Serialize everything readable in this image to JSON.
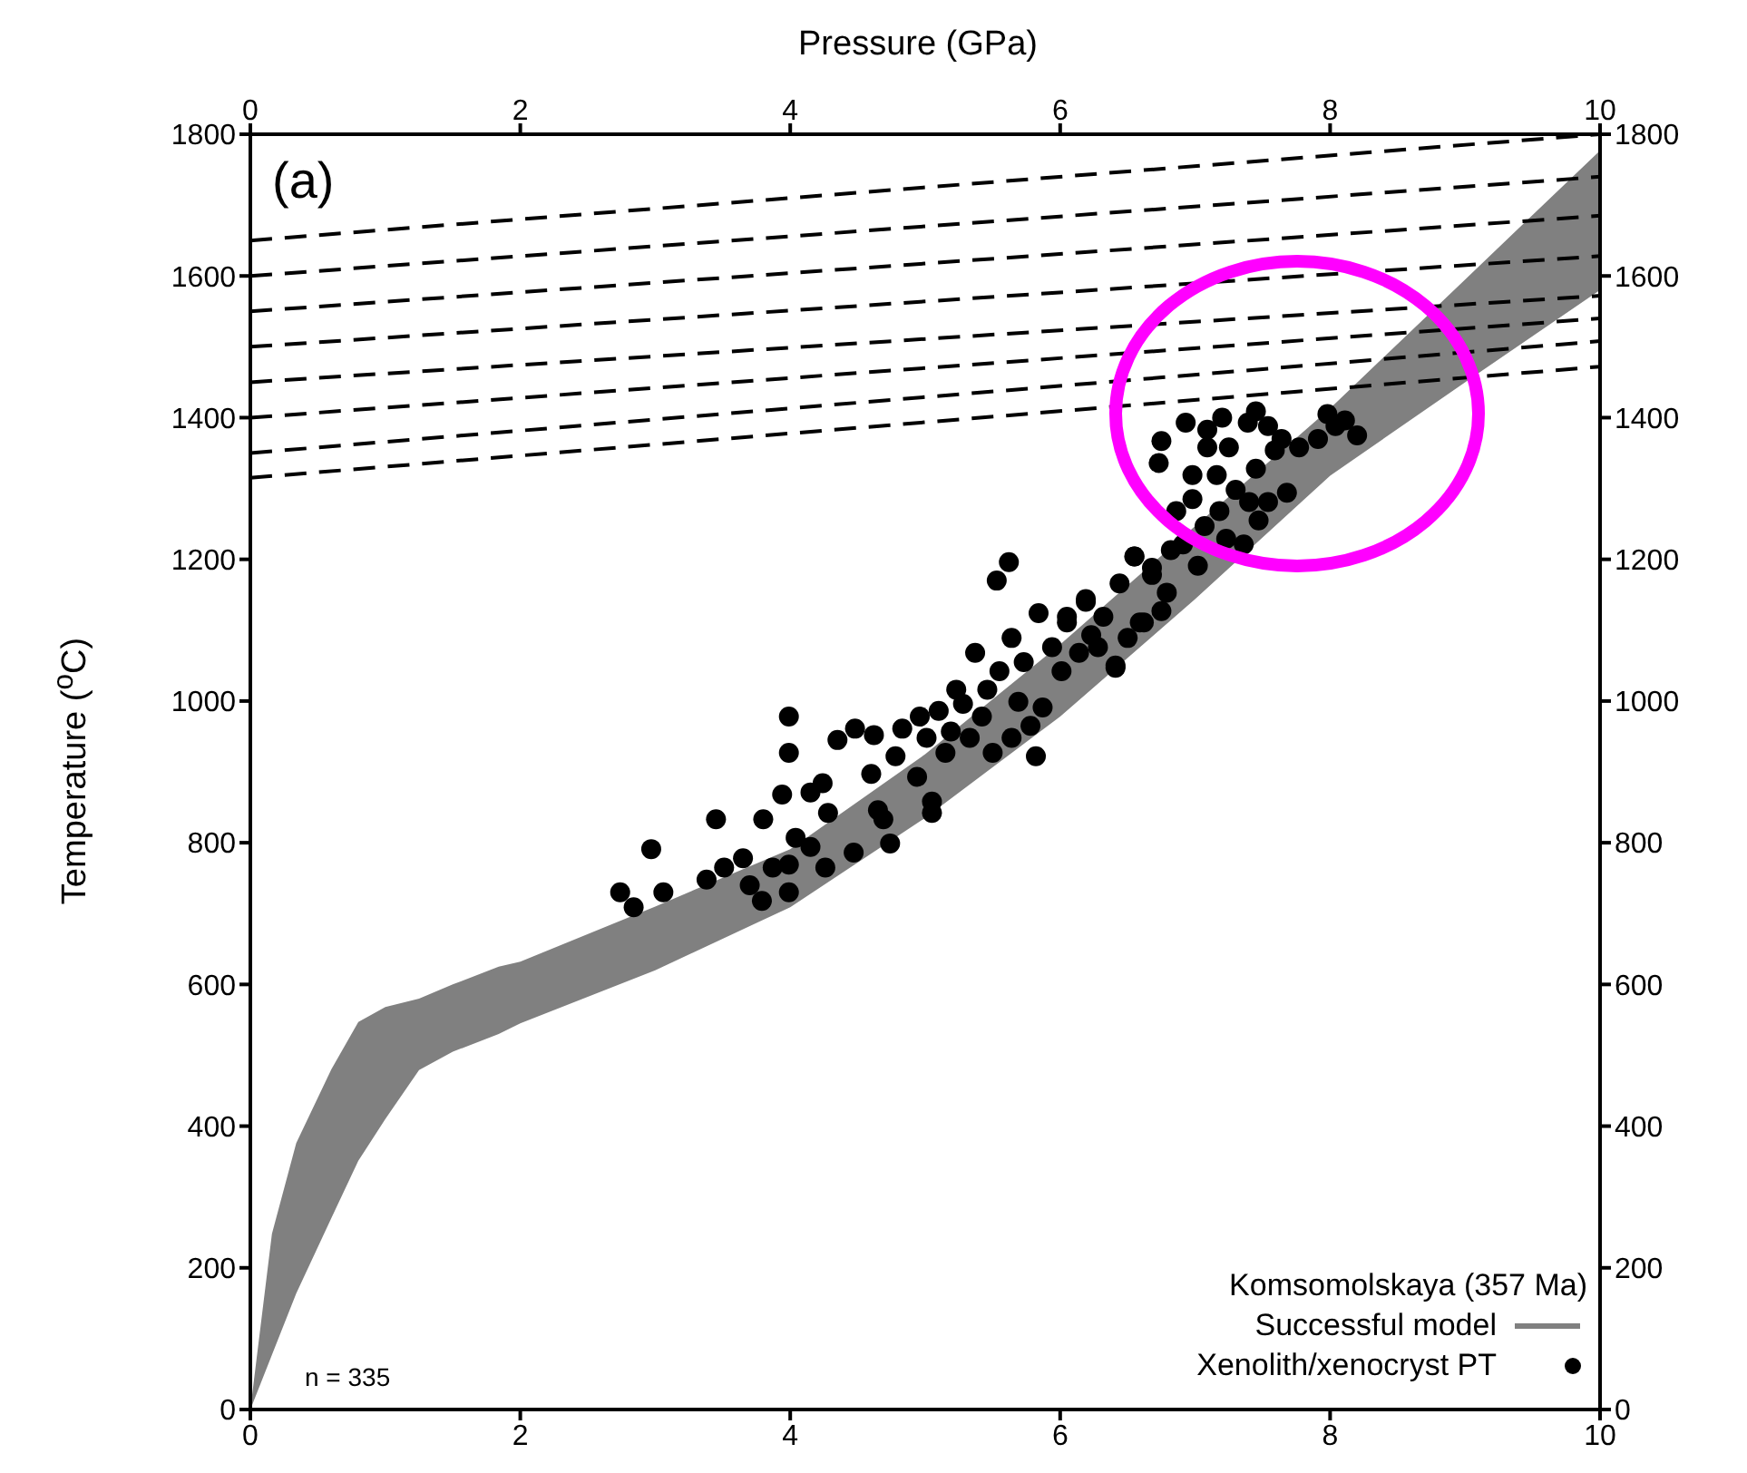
{
  "chart_data": {
    "type": "scatter",
    "x2label": "Pressure (GPa)",
    "ylabel": "Temperature ($^{o}$C)",
    "legend_title": "Komsomolskaya (357 Ma)",
    "annotations": [
      "(a)",
      "n = 335"
    ],
    "xlim": [
      0,
      10
    ],
    "xticks": [
      0,
      2,
      4,
      6,
      8,
      10
    ],
    "x2lim": [
      0,
      10
    ],
    "x2ticks": [
      0,
      2,
      4,
      6,
      8,
      10
    ],
    "ylim": [
      0,
      1800
    ],
    "yticks": [
      0,
      200,
      400,
      600,
      800,
      1000,
      1200,
      1400,
      1600,
      1800
    ],
    "y2lim": [
      0,
      1800
    ],
    "y2ticks": [
      0,
      200,
      400,
      600,
      800,
      1000,
      1200,
      1400,
      1600,
      1800
    ],
    "legend": "bottom right",
    "series": [
      {
        "type": "area",
        "name": "Successful model",
        "color": "#808080",
        "x": [
          0,
          0.16,
          0.34,
          0.6,
          0.8,
          1,
          1.25,
          1.5,
          1.84,
          2,
          3,
          4,
          5,
          6,
          7,
          8,
          9,
          10
        ],
        "values": [
          null,
          null,
          null,
          null,
          null,
          null,
          null,
          null,
          null,
          null,
          null,
          null,
          null,
          null,
          null,
          null,
          null,
          null
        ],
        "lower": [
          0,
          77,
          164,
          270,
          351,
          410,
          479,
          505,
          530,
          545,
          620,
          709,
          835,
          978,
          1144,
          1318,
          1450,
          1580
        ],
        "upper": [
          0,
          248,
          376,
          480,
          547,
          568,
          580,
          600,
          625,
          632,
          710,
          791,
          925,
          1080,
          1247,
          1413,
          1595,
          1777
        ]
      },
      {
        "type": "line",
        "color": "#000000",
        "line_style": "dashed",
        "x": [
          0,
          10
        ],
        "values": [
          1650,
          1800
        ]
      },
      {
        "type": "line",
        "color": "#000000",
        "line_style": "dashed",
        "x": [
          0,
          10
        ],
        "values": [
          1600,
          1740
        ]
      },
      {
        "type": "line",
        "color": "#000000",
        "line_style": "dashed",
        "x": [
          0,
          10
        ],
        "values": [
          1550,
          1685
        ]
      },
      {
        "type": "line",
        "color": "#000000",
        "line_style": "dashed",
        "x": [
          0,
          10
        ],
        "values": [
          1500,
          1628
        ]
      },
      {
        "type": "line",
        "color": "#000000",
        "line_style": "dashed",
        "x": [
          0,
          10
        ],
        "values": [
          1450,
          1572
        ]
      },
      {
        "type": "line",
        "color": "#000000",
        "line_style": "dashed",
        "x": [
          0,
          10
        ],
        "values": [
          1400,
          1540
        ]
      },
      {
        "type": "line",
        "color": "#000000",
        "line_style": "dashed",
        "x": [
          0,
          10
        ],
        "values": [
          1350,
          1508
        ]
      },
      {
        "type": "line",
        "color": "#000000",
        "line_style": "dashed",
        "x": [
          0,
          10
        ],
        "values": [
          1315,
          1472
        ]
      },
      {
        "name": "Xenolith/xenocryst PT",
        "marker": "circle",
        "color": "#000000",
        "x": [
          2.74,
          2.84,
          2.97,
          3.06,
          3.38,
          3.45,
          3.51,
          3.65,
          3.7,
          3.79,
          3.8,
          3.87,
          3.94,
          3.99,
          3.99,
          3.99,
          3.99,
          4.04,
          4.15,
          4.15,
          4.24,
          4.26,
          4.28,
          4.35,
          4.47,
          4.48,
          4.6,
          4.62,
          4.65,
          4.69,
          4.74,
          4.78,
          4.83,
          4.94,
          4.96,
          5.01,
          5.05,
          5.05,
          5.1,
          5.15,
          5.19,
          5.23,
          5.28,
          5.33,
          5.37,
          5.42,
          5.46,
          5.5,
          5.53,
          5.55,
          5.62,
          5.64,
          5.64,
          5.69,
          5.73,
          5.78,
          5.82,
          5.84,
          5.87,
          5.94,
          6.01,
          6.05,
          6.14,
          6.19,
          6.23,
          6.32,
          6.41,
          6.44,
          6.5,
          6.55,
          6.62,
          6.68,
          6.75,
          6.82,
          6.05,
          6.19,
          6.28,
          6.41,
          6.55,
          6.59,
          6.68,
          6.73,
          6.75,
          6.79,
          6.86,
          6.91,
          6.93,
          6.98,
          6.98,
          7.02,
          7.07,
          7.09,
          7.09,
          7.16,
          7.18,
          7.2,
          7.23,
          7.25,
          7.3,
          7.36,
          7.39,
          7.4,
          7.45,
          7.45,
          7.47,
          7.54,
          7.54,
          7.59,
          7.64,
          7.68,
          7.77,
          7.91,
          7.98,
          8.04,
          8.11,
          8.2
        ],
        "values": [
          730,
          709,
          791,
          730,
          748,
          833,
          765,
          778,
          740,
          718,
          833,
          765,
          868,
          978,
          927,
          769,
          730,
          807,
          871,
          794,
          884,
          765,
          842,
          945,
          786,
          961,
          897,
          952,
          846,
          833,
          799,
          922,
          961,
          893,
          978,
          948,
          858,
          842,
          986,
          927,
          957,
          1016,
          996,
          948,
          1068,
          978,
          1016,
          927,
          1170,
          1042,
          1196,
          1089,
          948,
          999,
          1055,
          965,
          922,
          1124,
          991,
          1076,
          1042,
          1111,
          1068,
          1144,
          1093,
          1119,
          1047,
          1166,
          1089,
          1204,
          1111,
          1188,
          1127,
          1213,
          1119,
          1140,
          1076,
          1050,
          1204,
          1111,
          1178,
          1336,
          1367,
          1153,
          1268,
          1221,
          1393,
          1319,
          1285,
          1191,
          1247,
          1358,
          1383,
          1319,
          1268,
          1400,
          1229,
          1358,
          1298,
          1221,
          1393,
          1281,
          1409,
          1328,
          1255,
          1388,
          1281,
          1354,
          1370,
          1294,
          1358,
          1370,
          1405,
          1388,
          1396,
          1375
        ]
      }
    ]
  }
}
